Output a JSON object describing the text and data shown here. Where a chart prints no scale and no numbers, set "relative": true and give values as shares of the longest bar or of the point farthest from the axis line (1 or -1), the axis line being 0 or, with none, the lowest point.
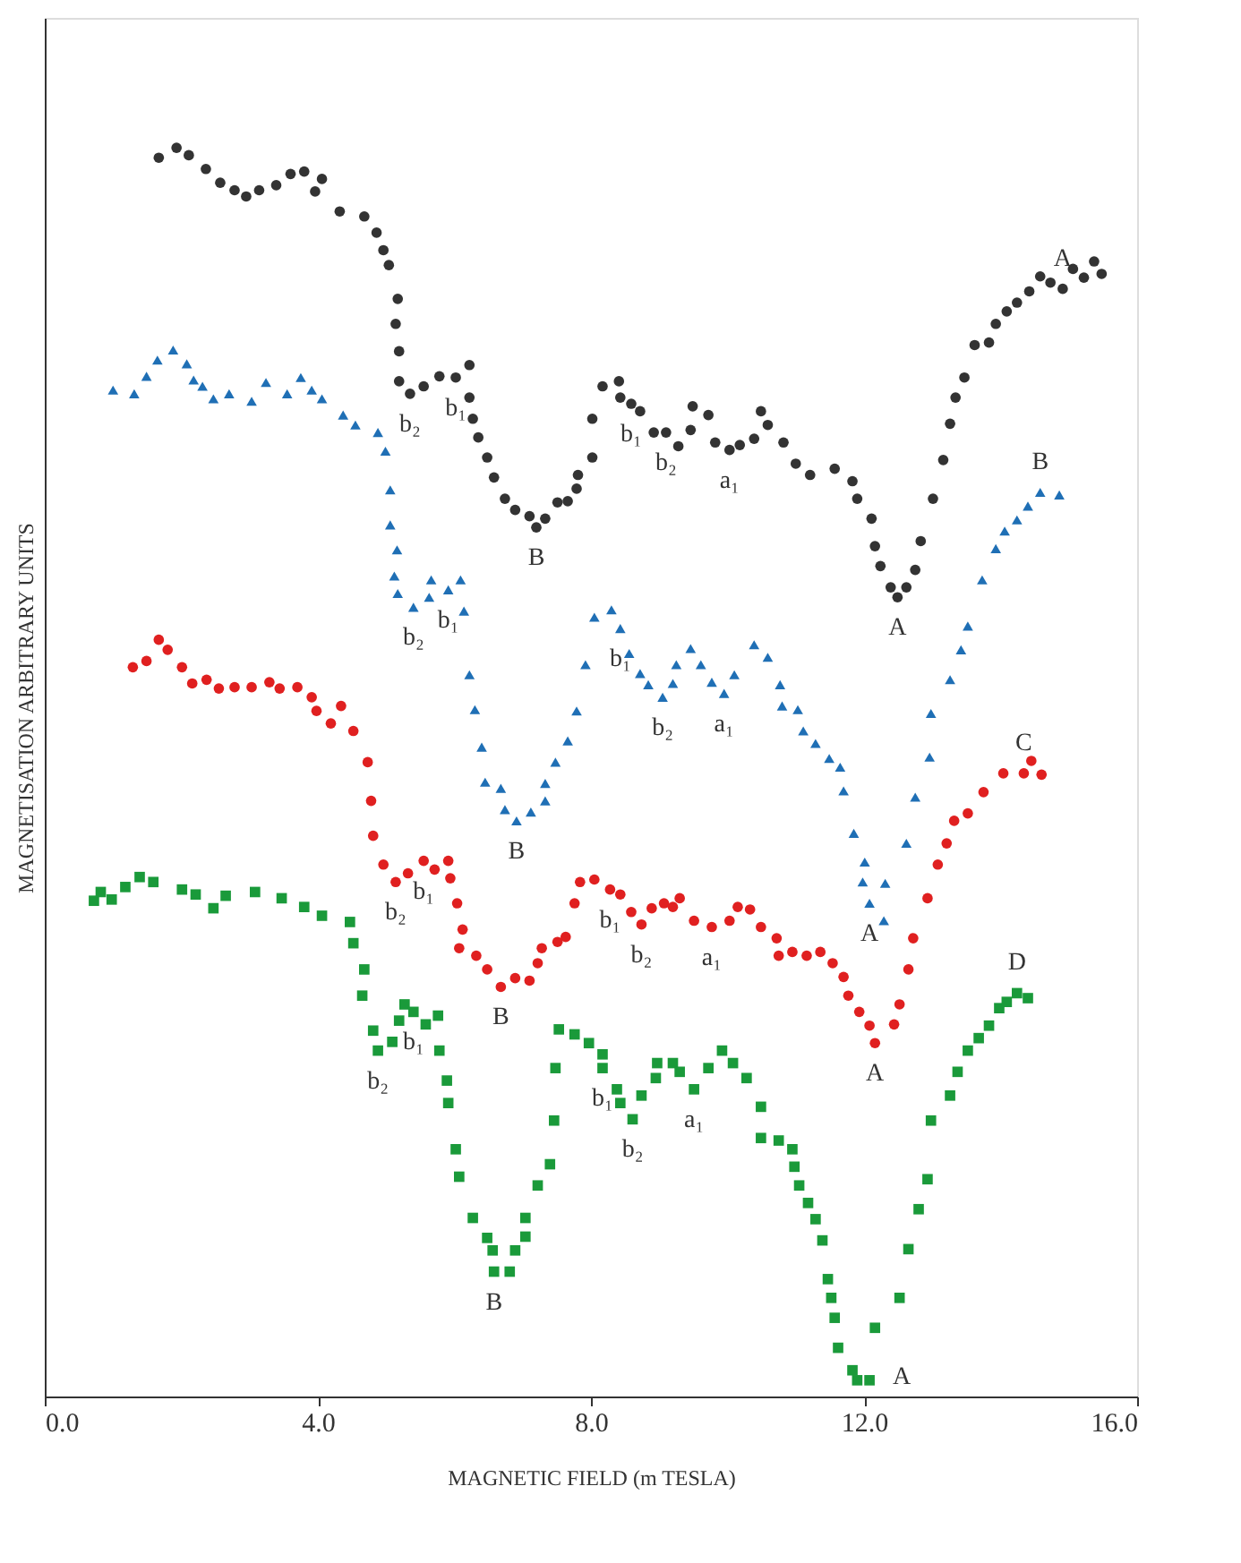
{
  "chart_data": {
    "type": "scatter",
    "relative": true,
    "xlabel": "MAGNETIC FIELD (m TESLA)",
    "ylabel": "MAGNETISATION ARBITRARY UNITS",
    "xlim": [
      0,
      16
    ],
    "xticks": [
      {
        "value": 0,
        "label": "0.0"
      },
      {
        "value": 4,
        "label": "4.0"
      },
      {
        "value": 8,
        "label": "8.0"
      },
      {
        "value": 12,
        "label": "12.0"
      },
      {
        "value": 16,
        "label": "16.0"
      }
    ],
    "grid": false,
    "series": [
      {
        "color": "#333333",
        "marker": "circle",
        "x": [
          1.67,
          1.93,
          2.11,
          2.36,
          2.57,
          2.78,
          2.95,
          3.14,
          3.39,
          3.6,
          3.8,
          3.96,
          4.06,
          4.32,
          4.68,
          4.86,
          4.96,
          5.04,
          5.17,
          5.14,
          5.19,
          5.19,
          5.35,
          5.55,
          5.78,
          6.02,
          6.22,
          6.22,
          6.27,
          6.35,
          6.48,
          6.58,
          6.74,
          6.89,
          7.1,
          7.2,
          7.33,
          7.51,
          7.66,
          7.79,
          7.81,
          8.02,
          8.02,
          8.17,
          8.41,
          8.43,
          8.59,
          8.72,
          8.92,
          9.1,
          9.28,
          9.46,
          9.49,
          9.72,
          9.82,
          10.03,
          10.18,
          10.39,
          10.49,
          10.59,
          10.82,
          11.0,
          11.21,
          11.57,
          11.83,
          11.9,
          12.11,
          12.16,
          12.24,
          12.39,
          12.49,
          12.62,
          12.75,
          12.83,
          13.01,
          13.16,
          13.26,
          13.34,
          13.47,
          13.62,
          13.83,
          13.93,
          14.09,
          14.24,
          14.42,
          14.58,
          14.73,
          14.91,
          15.06,
          15.22,
          15.37,
          15.48
        ],
        "values": [
          0.992,
          1.0,
          0.994,
          0.983,
          0.972,
          0.966,
          0.961,
          0.966,
          0.97,
          0.979,
          0.981,
          0.965,
          0.975,
          0.949,
          0.945,
          0.932,
          0.918,
          0.906,
          0.879,
          0.859,
          0.837,
          0.813,
          0.803,
          0.809,
          0.817,
          0.816,
          0.826,
          0.8,
          0.783,
          0.768,
          0.752,
          0.736,
          0.719,
          0.71,
          0.705,
          0.696,
          0.703,
          0.716,
          0.717,
          0.727,
          0.738,
          0.752,
          0.783,
          0.809,
          0.813,
          0.8,
          0.795,
          0.789,
          0.772,
          0.772,
          0.761,
          0.774,
          0.793,
          0.786,
          0.764,
          0.758,
          0.762,
          0.767,
          0.789,
          0.778,
          0.764,
          0.747,
          0.738,
          0.743,
          0.733,
          0.719,
          0.703,
          0.681,
          0.665,
          0.648,
          0.64,
          0.648,
          0.662,
          0.685,
          0.719,
          0.75,
          0.779,
          0.8,
          0.816,
          0.842,
          0.844,
          0.859,
          0.869,
          0.876,
          0.885,
          0.897,
          0.892,
          0.887,
          0.903,
          0.896,
          0.909,
          0.899
        ]
      },
      {
        "color": "#1f6fb5",
        "marker": "triangle",
        "x": [
          1.0,
          1.31,
          1.49,
          1.65,
          1.88,
          2.08,
          2.18,
          2.31,
          2.47,
          2.7,
          3.03,
          3.24,
          3.55,
          3.75,
          3.91,
          4.06,
          4.37,
          4.55,
          4.88,
          4.99,
          5.06,
          5.06,
          5.16,
          5.12,
          5.17,
          5.4,
          5.63,
          5.66,
          5.91,
          6.09,
          6.14,
          6.22,
          6.3,
          6.4,
          6.45,
          6.68,
          6.74,
          6.91,
          7.12,
          7.33,
          7.33,
          7.48,
          7.66,
          7.79,
          7.92,
          8.05,
          8.3,
          8.43,
          8.56,
          8.72,
          8.84,
          9.05,
          9.2,
          9.25,
          9.46,
          9.61,
          9.77,
          9.95,
          10.1,
          10.39,
          10.59,
          10.77,
          10.8,
          11.03,
          11.11,
          11.29,
          11.49,
          11.65,
          11.7,
          11.85,
          12.01,
          11.98,
          12.08,
          12.31,
          12.29,
          12.62,
          12.75,
          12.96,
          12.98,
          13.26,
          13.42,
          13.52,
          13.73,
          13.93,
          14.06,
          14.24,
          14.4,
          14.58,
          14.86
        ],
        "values": [
          0.806,
          0.803,
          0.817,
          0.83,
          0.838,
          0.827,
          0.814,
          0.809,
          0.799,
          0.803,
          0.797,
          0.812,
          0.803,
          0.816,
          0.806,
          0.799,
          0.786,
          0.778,
          0.772,
          0.757,
          0.726,
          0.698,
          0.678,
          0.657,
          0.643,
          0.632,
          0.64,
          0.654,
          0.646,
          0.654,
          0.629,
          0.578,
          0.55,
          0.52,
          0.492,
          0.487,
          0.47,
          0.461,
          0.468,
          0.477,
          0.491,
          0.508,
          0.525,
          0.549,
          0.586,
          0.624,
          0.63,
          0.615,
          0.595,
          0.579,
          0.57,
          0.56,
          0.571,
          0.586,
          0.599,
          0.586,
          0.572,
          0.563,
          0.578,
          0.602,
          0.592,
          0.57,
          0.553,
          0.55,
          0.533,
          0.523,
          0.511,
          0.504,
          0.485,
          0.451,
          0.428,
          0.412,
          0.395,
          0.411,
          0.381,
          0.443,
          0.48,
          0.512,
          0.547,
          0.574,
          0.598,
          0.617,
          0.654,
          0.679,
          0.693,
          0.702,
          0.713,
          0.724,
          0.722
        ]
      },
      {
        "color": "#e02020",
        "marker": "circle",
        "x": [
          1.29,
          1.49,
          1.67,
          1.8,
          2.01,
          2.16,
          2.37,
          2.55,
          2.78,
          3.03,
          3.29,
          3.44,
          3.7,
          3.91,
          3.98,
          4.19,
          4.34,
          4.52,
          4.73,
          4.78,
          4.81,
          4.96,
          5.14,
          5.32,
          5.55,
          5.71,
          5.91,
          5.94,
          6.04,
          6.12,
          6.07,
          6.32,
          6.48,
          6.68,
          6.89,
          7.1,
          7.22,
          7.28,
          7.51,
          7.63,
          7.76,
          7.84,
          8.05,
          8.28,
          8.43,
          8.59,
          8.74,
          8.89,
          9.07,
          9.2,
          9.3,
          9.51,
          9.77,
          10.03,
          10.15,
          10.33,
          10.49,
          10.72,
          10.75,
          10.95,
          11.16,
          11.36,
          11.54,
          11.7,
          11.77,
          11.93,
          12.08,
          12.16,
          12.44,
          12.52,
          12.65,
          12.72,
          12.93,
          13.08,
          13.21,
          13.32,
          13.52,
          13.75,
          14.04,
          14.34,
          14.45,
          14.6
        ],
        "values": [
          0.584,
          0.589,
          0.606,
          0.598,
          0.584,
          0.571,
          0.574,
          0.567,
          0.568,
          0.568,
          0.572,
          0.567,
          0.568,
          0.56,
          0.549,
          0.539,
          0.553,
          0.533,
          0.508,
          0.477,
          0.449,
          0.426,
          0.412,
          0.419,
          0.429,
          0.422,
          0.429,
          0.415,
          0.395,
          0.374,
          0.359,
          0.353,
          0.342,
          0.328,
          0.335,
          0.333,
          0.347,
          0.359,
          0.364,
          0.368,
          0.395,
          0.412,
          0.414,
          0.406,
          0.402,
          0.388,
          0.378,
          0.391,
          0.395,
          0.392,
          0.399,
          0.381,
          0.376,
          0.381,
          0.392,
          0.39,
          0.376,
          0.367,
          0.353,
          0.356,
          0.353,
          0.356,
          0.347,
          0.336,
          0.321,
          0.308,
          0.297,
          0.283,
          0.298,
          0.314,
          0.342,
          0.367,
          0.399,
          0.426,
          0.443,
          0.461,
          0.467,
          0.484,
          0.499,
          0.499,
          0.509,
          0.498
        ]
      },
      {
        "color": "#1a9a3a",
        "marker": "square",
        "x": [
          0.72,
          0.82,
          0.98,
          1.18,
          1.39,
          1.59,
          2.01,
          2.21,
          2.47,
          2.65,
          3.08,
          3.47,
          3.8,
          4.06,
          4.47,
          4.52,
          4.68,
          4.65,
          4.81,
          4.88,
          5.09,
          5.19,
          5.27,
          5.4,
          5.58,
          5.76,
          5.78,
          5.89,
          5.91,
          6.02,
          6.07,
          6.27,
          6.48,
          6.56,
          6.58,
          6.81,
          6.89,
          7.04,
          7.04,
          7.22,
          7.4,
          7.46,
          7.48,
          7.53,
          7.76,
          7.97,
          8.17,
          8.17,
          8.38,
          8.43,
          8.61,
          8.74,
          8.95,
          8.97,
          9.2,
          9.3,
          9.51,
          9.72,
          9.92,
          10.08,
          10.28,
          10.49,
          10.49,
          10.75,
          10.95,
          10.98,
          11.05,
          11.18,
          11.29,
          11.39,
          11.47,
          11.52,
          11.57,
          11.62,
          11.83,
          11.9,
          12.08,
          12.16,
          12.52,
          12.65,
          12.8,
          12.93,
          12.98,
          13.26,
          13.37,
          13.52,
          13.68,
          13.83,
          13.98,
          14.09,
          14.24,
          14.4
        ],
        "values": [
          0.397,
          0.404,
          0.398,
          0.408,
          0.416,
          0.412,
          0.406,
          0.402,
          0.391,
          0.401,
          0.404,
          0.399,
          0.392,
          0.385,
          0.38,
          0.363,
          0.342,
          0.321,
          0.293,
          0.277,
          0.284,
          0.301,
          0.314,
          0.308,
          0.298,
          0.305,
          0.277,
          0.253,
          0.235,
          0.198,
          0.176,
          0.143,
          0.127,
          0.117,
          0.1,
          0.1,
          0.117,
          0.128,
          0.143,
          0.169,
          0.186,
          0.221,
          0.263,
          0.294,
          0.29,
          0.283,
          0.274,
          0.263,
          0.246,
          0.235,
          0.222,
          0.241,
          0.255,
          0.267,
          0.267,
          0.26,
          0.246,
          0.263,
          0.277,
          0.267,
          0.255,
          0.232,
          0.207,
          0.205,
          0.198,
          0.184,
          0.169,
          0.155,
          0.142,
          0.125,
          0.094,
          0.079,
          0.063,
          0.039,
          0.021,
          0.013,
          0.013,
          0.055,
          0.079,
          0.118,
          0.15,
          0.174,
          0.221,
          0.241,
          0.26,
          0.277,
          0.287,
          0.297,
          0.311,
          0.316,
          0.323,
          0.319
        ]
      }
    ],
    "annotations": [
      {
        "text": "b₂",
        "x": 5.35,
        "y": 0.803
      },
      {
        "text": "b₁",
        "x": 6.02,
        "y": 0.816
      },
      {
        "text": "B",
        "x": 7.2,
        "y": 0.696
      },
      {
        "text": "b₁",
        "x": 8.59,
        "y": 0.795
      },
      {
        "text": "b₂",
        "x": 9.1,
        "y": 0.772
      },
      {
        "text": "a₁",
        "x": 10.03,
        "y": 0.758
      },
      {
        "text": "A",
        "x": 12.49,
        "y": 0.64
      },
      {
        "text": "A",
        "x": 14.91,
        "y": 0.887
      },
      {
        "text": "b₂",
        "x": 5.4,
        "y": 0.632
      },
      {
        "text": "b₁",
        "x": 5.91,
        "y": 0.646
      },
      {
        "text": "B",
        "x": 6.91,
        "y": 0.461
      },
      {
        "text": "b₁",
        "x": 8.43,
        "y": 0.615
      },
      {
        "text": "b₂",
        "x": 9.05,
        "y": 0.56
      },
      {
        "text": "a₁",
        "x": 9.95,
        "y": 0.563
      },
      {
        "text": "A",
        "x": 12.08,
        "y": 0.395
      },
      {
        "text": "B",
        "x": 14.58,
        "y": 0.724
      },
      {
        "text": "b₂",
        "x": 5.14,
        "y": 0.412
      },
      {
        "text": "b₁",
        "x": 5.55,
        "y": 0.429
      },
      {
        "text": "B",
        "x": 6.68,
        "y": 0.328
      },
      {
        "text": "b₁",
        "x": 8.28,
        "y": 0.406
      },
      {
        "text": "b₂",
        "x": 8.74,
        "y": 0.378
      },
      {
        "text": "a₁",
        "x": 9.77,
        "y": 0.376
      },
      {
        "text": "A",
        "x": 12.16,
        "y": 0.283
      },
      {
        "text": "C",
        "x": 14.34,
        "y": 0.499
      },
      {
        "text": "b₂",
        "x": 4.88,
        "y": 0.277
      },
      {
        "text": "b₁",
        "x": 5.4,
        "y": 0.308
      },
      {
        "text": "B",
        "x": 6.58,
        "y": 0.1
      },
      {
        "text": "b₁",
        "x": 8.17,
        "y": 0.263
      },
      {
        "text": "b₂",
        "x": 8.61,
        "y": 0.222
      },
      {
        "text": "a₁",
        "x": 9.51,
        "y": 0.246
      },
      {
        "text": "A",
        "x": 12.08,
        "y": 0.013
      },
      {
        "text": "D",
        "x": 14.24,
        "y": 0.323
      }
    ]
  }
}
